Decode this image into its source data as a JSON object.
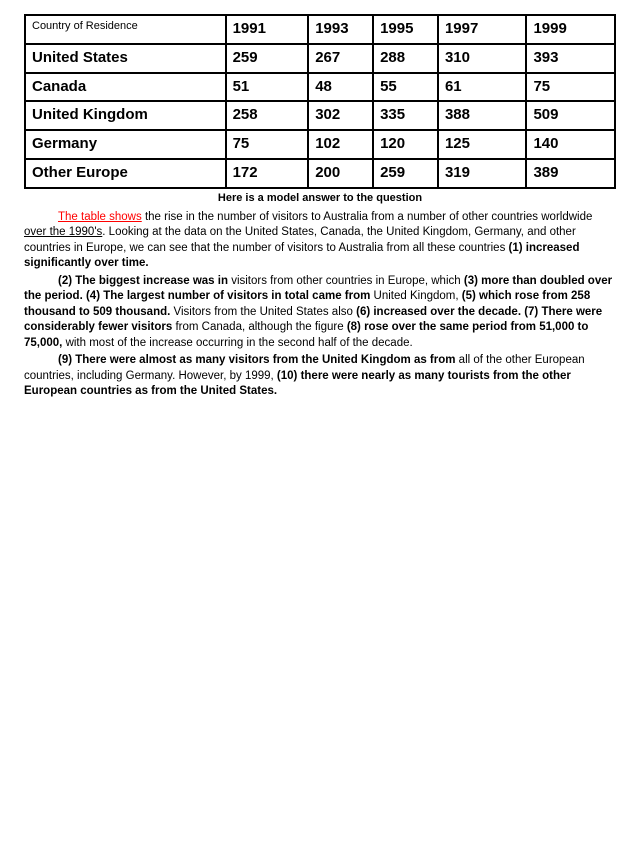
{
  "table": {
    "header_label": "Country of Residence",
    "years": [
      "1991",
      "1993",
      "1995",
      "1997",
      "1999"
    ],
    "rows": [
      {
        "name": "United States",
        "v": [
          "259",
          "267",
          "288",
          "310",
          "393"
        ]
      },
      {
        "name": "Canada",
        "v": [
          "51",
          "48",
          "55",
          "61",
          "75"
        ]
      },
      {
        "name": "United Kingdom",
        "v": [
          "258",
          "302",
          "335",
          "388",
          "509"
        ]
      },
      {
        "name": "Germany",
        "v": [
          "75",
          "102",
          "120",
          "125",
          "140"
        ]
      },
      {
        "name": "Other Europe",
        "v": [
          "172",
          "200",
          "259",
          "319",
          "389"
        ]
      }
    ]
  },
  "caption": "Here is a model answer to the question",
  "body": {
    "p1_a": "The table shows",
    "p1_b": " the rise in the number of visitors to Australia from a number of other countries worldwide ",
    "p1_c": "over the 1990's",
    "p1_d": ". Looking at the data on the United States, Canada, the United Kingdom, Germany, and other countries in Europe, we can see that the number of visitors to Australia from all these countries ",
    "p1_e": "(1) increased significantly over time.",
    "p2_a": "(2) The biggest increase was in",
    "p2_b": " visitors from other countries in Europe, which ",
    "p2_c": "(3) more than doubled over the period. (4) The largest number of visitors in total came from",
    "p2_d": " United Kingdom, ",
    "p2_e": "(5) which rose from 258 thousand to 509 thousand.",
    "p2_f": " Visitors from the United States also ",
    "p2_g": "(6) increased over the decade. (7) There were considerably fewer visitors",
    "p2_h": " from Canada, although the figure ",
    "p2_i": "(8) rose over the same period from 51,000 to 75,000,",
    "p2_j": " with most of the increase occurring in the second half of the decade.",
    "p3_a": "(9) There were almost as many visitors from the United Kingdom as from",
    "p3_b": " all of the other European countries, including Germany. However, by 1999, ",
    "p3_c": "(10) there were nearly as many tourists from the other European countries as from the United States."
  }
}
